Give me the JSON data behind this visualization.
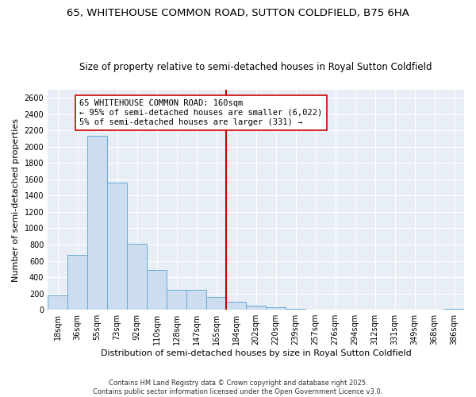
{
  "title1": "65, WHITEHOUSE COMMON ROAD, SUTTON COLDFIELD, B75 6HA",
  "title2": "Size of property relative to semi-detached houses in Royal Sutton Coldfield",
  "xlabel": "Distribution of semi-detached houses by size in Royal Sutton Coldfield",
  "ylabel": "Number of semi-detached properties",
  "footnote1": "Contains HM Land Registry data © Crown copyright and database right 2025.",
  "footnote2": "Contains public sector information licensed under the Open Government Licence v3.0.",
  "annotation_line1": "65 WHITEHOUSE COMMON ROAD: 160sqm",
  "annotation_line2": "← 95% of semi-detached houses are smaller (6,022)",
  "annotation_line3": "5% of semi-detached houses are larger (331) →",
  "bar_color": "#ccddf0",
  "bar_edge_color": "#6aaad4",
  "vline_color": "#cc0000",
  "background_color": "#e8eef5",
  "grid_color": "#ffffff",
  "categories": [
    "18sqm",
    "36sqm",
    "55sqm",
    "73sqm",
    "92sqm",
    "110sqm",
    "128sqm",
    "147sqm",
    "165sqm",
    "184sqm",
    "202sqm",
    "220sqm",
    "239sqm",
    "257sqm",
    "276sqm",
    "294sqm",
    "312sqm",
    "331sqm",
    "349sqm",
    "368sqm",
    "386sqm"
  ],
  "values": [
    180,
    670,
    2130,
    1560,
    810,
    490,
    240,
    240,
    160,
    100,
    50,
    30,
    15,
    0,
    0,
    0,
    0,
    0,
    0,
    0,
    10
  ],
  "vline_x": 8.5,
  "ylim": [
    0,
    2700
  ],
  "yticks": [
    0,
    200,
    400,
    600,
    800,
    1000,
    1200,
    1400,
    1600,
    1800,
    2000,
    2200,
    2400,
    2600
  ],
  "title1_fontsize": 9.5,
  "title2_fontsize": 8.5,
  "annotation_fontsize": 7.5,
  "tick_fontsize": 7,
  "xlabel_fontsize": 8,
  "ylabel_fontsize": 8
}
